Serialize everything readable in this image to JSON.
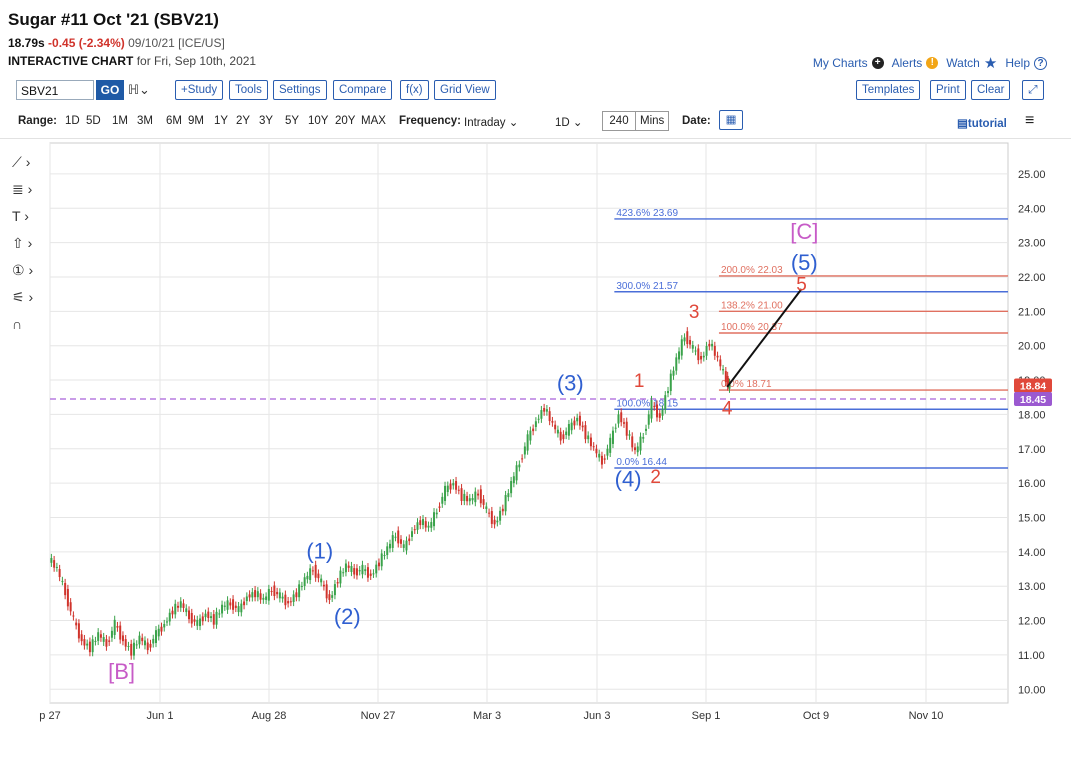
{
  "header": {
    "title": "Sugar #11 Oct '21 (SBV21)",
    "last": "18.79s",
    "change": "-0.45 (-2.34%)",
    "date_exchange": "09/10/21 [ICE/US]",
    "chart_label": "Interactive Chart",
    "chart_for": "for Fri, Sep 10th, 2021"
  },
  "topnav": {
    "my_charts": "My Charts",
    "alerts": "Alerts",
    "watch": "Watch",
    "help": "Help"
  },
  "toolbar": {
    "symbol": "SBV21",
    "go": "GO",
    "study": "+Study",
    "tools": "Tools",
    "settings": "Settings",
    "compare": "Compare",
    "fx": "f(x)",
    "grid_view": "Grid View",
    "templates": "Templates",
    "print": "Print",
    "clear": "Clear"
  },
  "rangebar": {
    "range_label": "Range:",
    "ranges": [
      "1D",
      "5D",
      "1M",
      "3M",
      "6M",
      "9M",
      "1Y",
      "2Y",
      "3Y",
      "5Y",
      "10Y",
      "20Y",
      "MAX"
    ],
    "frequency_label": "Frequency:",
    "frequency": "Intraday",
    "interval": "1D",
    "mins_value": "240",
    "mins_label": "Mins",
    "date_label": "Date:",
    "tutorial": "tutorial"
  },
  "colors": {
    "up": "#3aa24a",
    "down": "#d0332b",
    "wave_blue": "#2f5fd0",
    "wave_red": "#e0483a",
    "wave_magenta": "#c75bc7",
    "fib_blue": "#4a6ed8",
    "fib_red": "#e07060",
    "dash": "#b77ce0"
  },
  "chart_data": {
    "type": "line",
    "subtype": "candlestick-approx",
    "x_tick_labels": [
      "p 27",
      "Jun 1",
      "Aug 28",
      "Nov 27",
      "Mar 3",
      "Jun 3",
      "Sep 1",
      "Oct 9",
      "Nov 10"
    ],
    "y_ticks": [
      10,
      11,
      12,
      13,
      14,
      15,
      16,
      17,
      18,
      19,
      20,
      21,
      22,
      23,
      24,
      25
    ],
    "y_tick_labels": [
      "10.00",
      "11.00",
      "12.00",
      "13.00",
      "14.00",
      "15.00",
      "16.00",
      "17.00",
      "18.00",
      "19.00",
      "20.00",
      "21.00",
      "22.00",
      "23.00",
      "24.00",
      "25.00"
    ],
    "ylim": [
      9.6,
      25.9
    ],
    "grid": true,
    "price_path": [
      [
        0,
        13.8
      ],
      [
        3,
        13.5
      ],
      [
        6,
        12.8
      ],
      [
        9,
        12.0
      ],
      [
        12,
        11.4
      ],
      [
        15,
        11.2
      ],
      [
        18,
        11.6
      ],
      [
        21,
        11.3
      ],
      [
        24,
        11.9
      ],
      [
        27,
        11.4
      ],
      [
        30,
        11.1
      ],
      [
        33,
        11.5
      ],
      [
        36,
        11.2
      ],
      [
        39,
        11.6
      ],
      [
        42,
        11.9
      ],
      [
        45,
        12.3
      ],
      [
        48,
        12.5
      ],
      [
        51,
        12.1
      ],
      [
        54,
        11.9
      ],
      [
        57,
        12.2
      ],
      [
        60,
        12.0
      ],
      [
        63,
        12.4
      ],
      [
        66,
        12.5
      ],
      [
        69,
        12.3
      ],
      [
        72,
        12.7
      ],
      [
        75,
        12.8
      ],
      [
        78,
        12.6
      ],
      [
        81,
        12.9
      ],
      [
        84,
        12.7
      ],
      [
        87,
        12.5
      ],
      [
        90,
        12.8
      ],
      [
        93,
        13.2
      ],
      [
        96,
        13.5
      ],
      [
        99,
        13.1
      ],
      [
        102,
        12.6
      ],
      [
        105,
        13.2
      ],
      [
        108,
        13.6
      ],
      [
        111,
        13.4
      ],
      [
        114,
        13.5
      ],
      [
        117,
        13.3
      ],
      [
        120,
        13.7
      ],
      [
        123,
        14.1
      ],
      [
        126,
        14.5
      ],
      [
        129,
        14.1
      ],
      [
        132,
        14.6
      ],
      [
        135,
        14.9
      ],
      [
        138,
        14.7
      ],
      [
        141,
        15.2
      ],
      [
        144,
        15.8
      ],
      [
        147,
        16.0
      ],
      [
        150,
        15.6
      ],
      [
        153,
        15.5
      ],
      [
        156,
        15.7
      ],
      [
        159,
        15.2
      ],
      [
        162,
        14.8
      ],
      [
        165,
        15.3
      ],
      [
        168,
        16.0
      ],
      [
        171,
        16.6
      ],
      [
        174,
        17.3
      ],
      [
        177,
        17.8
      ],
      [
        180,
        18.2
      ],
      [
        183,
        17.7
      ],
      [
        186,
        17.3
      ],
      [
        189,
        17.6
      ],
      [
        192,
        17.9
      ],
      [
        195,
        17.4
      ],
      [
        198,
        17.0
      ],
      [
        201,
        16.6
      ],
      [
        204,
        17.2
      ],
      [
        207,
        18.0
      ],
      [
        210,
        17.5
      ],
      [
        213,
        16.9
      ],
      [
        216,
        17.4
      ],
      [
        219,
        18.3
      ],
      [
        222,
        17.9
      ],
      [
        225,
        18.8
      ],
      [
        228,
        19.6
      ],
      [
        231,
        20.3
      ],
      [
        234,
        19.9
      ],
      [
        237,
        19.6
      ],
      [
        240,
        20.1
      ],
      [
        243,
        19.6
      ],
      [
        246,
        19.0
      ],
      [
        247,
        18.8
      ]
    ],
    "x_max": 348,
    "fib_lines": [
      {
        "label": "423.6% 23.69",
        "value": 23.69,
        "color": "blue",
        "x0": 205
      },
      {
        "label": "300.0% 21.57",
        "value": 21.57,
        "color": "blue",
        "x0": 205
      },
      {
        "label": "100.0% 18.15",
        "value": 18.15,
        "color": "blue",
        "x0": 205
      },
      {
        "label": "0.0% 16.44",
        "value": 16.44,
        "color": "blue",
        "x0": 205
      },
      {
        "label": "200.0% 22.03",
        "value": 22.03,
        "color": "red",
        "x0": 243
      },
      {
        "label": "138.2% 21.00",
        "value": 21.0,
        "color": "red",
        "x0": 243
      },
      {
        "label": "100.0% 20.37",
        "value": 20.37,
        "color": "red",
        "x0": 243
      },
      {
        "label": "0.0% 18.71",
        "value": 18.71,
        "color": "red",
        "x0": 243
      }
    ],
    "dashed_line": 18.45,
    "price_badges": [
      {
        "text": "18.84",
        "value": 18.84,
        "color": "#e0483a"
      },
      {
        "text": "18.45",
        "value": 18.45,
        "color": "#9b59d0"
      }
    ],
    "projection": {
      "from": [
        246,
        18.8
      ],
      "to": [
        273,
        21.65
      ]
    },
    "wave_labels": [
      {
        "text": "[B]",
        "x": 26,
        "y": 10.3,
        "color": "magenta"
      },
      {
        "text": "(1)",
        "x": 98,
        "y": 13.8,
        "color": "blue"
      },
      {
        "text": "(2)",
        "x": 108,
        "y": 11.9,
        "color": "blue"
      },
      {
        "text": "(3)",
        "x": 189,
        "y": 18.7,
        "color": "blue"
      },
      {
        "text": "(4)",
        "x": 210,
        "y": 15.9,
        "color": "blue"
      },
      {
        "text": "[C]",
        "x": 274,
        "y": 23.1,
        "color": "magenta"
      },
      {
        "text": "(5)",
        "x": 274,
        "y": 22.2,
        "color": "blue"
      },
      {
        "text": "1",
        "x": 214,
        "y": 18.8,
        "color": "red"
      },
      {
        "text": "2",
        "x": 220,
        "y": 16.0,
        "color": "red"
      },
      {
        "text": "3",
        "x": 234,
        "y": 20.8,
        "color": "red"
      },
      {
        "text": "4",
        "x": 246,
        "y": 18.0,
        "color": "red"
      },
      {
        "text": "5",
        "x": 273,
        "y": 21.6,
        "color": "red"
      }
    ]
  }
}
